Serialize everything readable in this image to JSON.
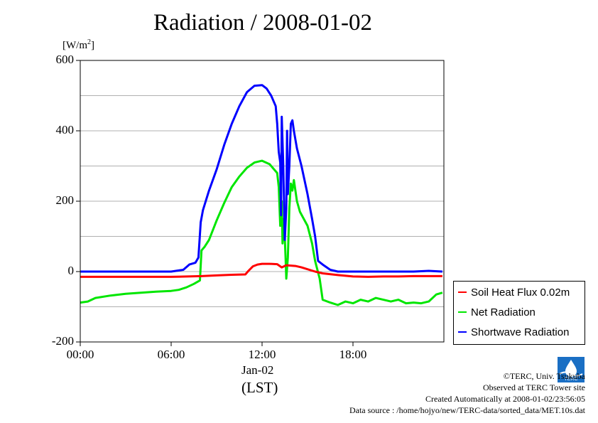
{
  "chart_data": {
    "type": "line",
    "title": "Radiation / 2008-01-02",
    "ylabel_unit": "[W/m",
    "ylabel_unit_sup": "2",
    "ylabel_unit_close": "]",
    "xlabel_date": "Jan-02",
    "xlabel_zone": "(LST)",
    "ylim": [
      -200,
      600
    ],
    "xlim": [
      0,
      24
    ],
    "yticks": [
      -200,
      0,
      200,
      400,
      600
    ],
    "ytick_labels": [
      "-200",
      "0",
      "200",
      "400",
      "600"
    ],
    "xticks": [
      0,
      6,
      12,
      18
    ],
    "xtick_labels": [
      "00:00",
      "06:00",
      "12:00",
      "18:00"
    ],
    "grid": true,
    "legend_position": "right-bottom",
    "series": [
      {
        "name": "Soil Heat Flux 0.02m",
        "color": "#ff0000",
        "x": [
          0,
          3,
          6,
          8,
          9,
          10,
          10.9,
          11.1,
          11.4,
          11.7,
          12,
          12.5,
          13,
          13.3,
          13.6,
          14.2,
          14.6,
          15.5,
          16,
          17,
          18,
          19,
          20,
          21,
          22,
          23,
          23.9
        ],
        "y": [
          -15,
          -15,
          -15,
          -13,
          -11,
          -9,
          -8,
          2,
          15,
          20,
          22,
          22,
          21,
          12,
          18,
          16,
          12,
          0,
          -5,
          -10,
          -14,
          -15,
          -14,
          -14,
          -13,
          -13,
          -13
        ]
      },
      {
        "name": "Net Radiation",
        "color": "#00e600",
        "x": [
          0,
          0.5,
          1,
          2,
          3,
          4,
          5,
          6,
          6.5,
          7,
          7.5,
          7.9,
          8.0,
          8.2,
          8.5,
          9,
          9.5,
          10,
          10.5,
          11,
          11.5,
          12,
          12.5,
          13,
          13.1,
          13.2,
          13.3,
          13.35,
          13.45,
          13.55,
          13.6,
          13.7,
          13.8,
          13.9,
          14.0,
          14.1,
          14.3,
          14.5,
          15,
          15.3,
          15.5,
          15.8,
          16,
          16.5,
          17,
          17.5,
          18,
          18.5,
          19,
          19.5,
          20,
          20.5,
          21,
          21.5,
          22,
          22.5,
          23,
          23.5,
          23.9
        ],
        "y": [
          -88,
          -85,
          -75,
          -68,
          -63,
          -60,
          -57,
          -55,
          -52,
          -45,
          -35,
          -25,
          60,
          70,
          90,
          145,
          195,
          240,
          270,
          295,
          310,
          315,
          305,
          280,
          240,
          130,
          200,
          80,
          150,
          40,
          -20,
          40,
          180,
          250,
          230,
          260,
          200,
          170,
          130,
          80,
          30,
          -20,
          -80,
          -88,
          -95,
          -85,
          -90,
          -80,
          -85,
          -75,
          -80,
          -85,
          -80,
          -90,
          -88,
          -90,
          -85,
          -65,
          -60
        ]
      },
      {
        "name": "Shortwave Radiation",
        "color": "#0000ff",
        "x": [
          0,
          2,
          4,
          6,
          6.8,
          7.2,
          7.6,
          7.8,
          7.95,
          8.1,
          8.5,
          9,
          9.5,
          10,
          10.5,
          11,
          11.5,
          12,
          12.3,
          12.6,
          12.9,
          13.0,
          13.1,
          13.2,
          13.25,
          13.3,
          13.4,
          13.5,
          13.6,
          13.65,
          13.7,
          13.8,
          13.9,
          14.0,
          14.1,
          14.3,
          14.6,
          15,
          15.3,
          15.5,
          15.7,
          16,
          16.5,
          17,
          18,
          19,
          20,
          21,
          22,
          23,
          23.9
        ],
        "y": [
          0,
          0,
          0,
          0,
          5,
          20,
          25,
          40,
          140,
          175,
          230,
          290,
          360,
          420,
          470,
          510,
          528,
          530,
          520,
          500,
          470,
          420,
          340,
          310,
          160,
          440,
          300,
          90,
          180,
          400,
          220,
          300,
          420,
          430,
          400,
          350,
          300,
          220,
          150,
          100,
          30,
          20,
          5,
          0,
          0,
          0,
          0,
          0,
          0,
          2,
          0
        ]
      }
    ]
  },
  "footer": {
    "credit": "©TERC, Univ. Tsukuba",
    "site": "Observed at TERC Tower site",
    "created": "Created Automatically at 2008-01-02/23:56:05",
    "source": "Data source : /home/hojyo/new/TERC-data/sorted_data/MET.10s.dat",
    "logo_text": "TERC"
  }
}
